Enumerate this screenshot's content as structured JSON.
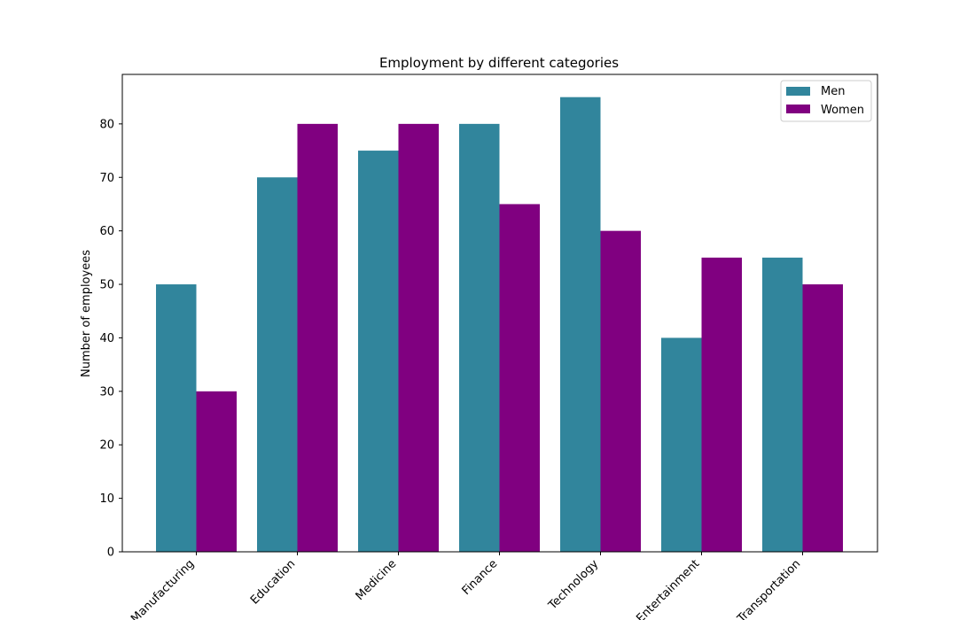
{
  "chart_data": {
    "type": "bar",
    "title": "Employment by different categories",
    "xlabel": "",
    "ylabel": "Number of employees",
    "categories": [
      "Manufacturing",
      "Education",
      "Medicine",
      "Finance",
      "Technology",
      "Entertainment",
      "Transportation"
    ],
    "series": [
      {
        "name": "Men",
        "values": [
          50,
          70,
          75,
          80,
          85,
          40,
          55
        ],
        "color": "#31859C"
      },
      {
        "name": "Women",
        "values": [
          30,
          80,
          80,
          65,
          60,
          55,
          50
        ],
        "color": "#800080"
      }
    ],
    "ylim": [
      0,
      89.25
    ],
    "yticks": [
      0,
      10,
      20,
      30,
      40,
      50,
      60,
      70,
      80
    ],
    "grid": false,
    "legend_position": "top-right"
  }
}
